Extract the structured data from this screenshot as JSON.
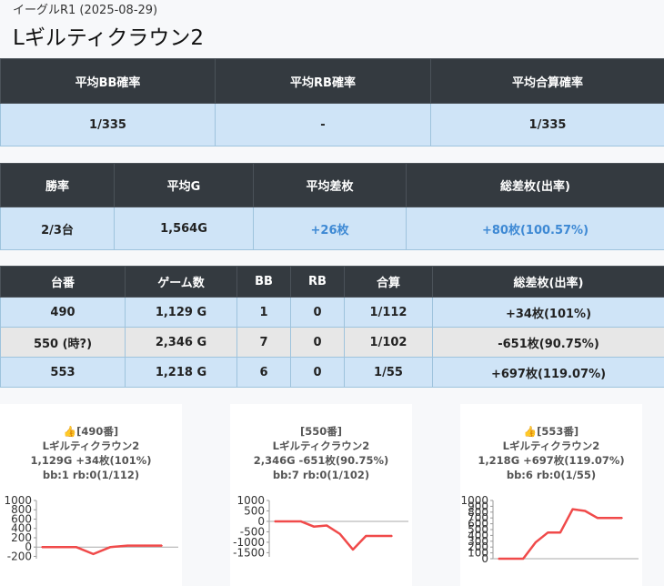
{
  "header": {
    "subtitle": "イーグルR1 (2025-08-29)",
    "title": "Lギルティクラウン2"
  },
  "summary1": {
    "headers": [
      "平均BB確率",
      "平均RB確率",
      "平均合算確率"
    ],
    "values": [
      "1/335",
      "-",
      "1/335"
    ]
  },
  "summary2": {
    "headers": [
      "勝率",
      "平均G",
      "平均差枚",
      "総差枚(出率)"
    ],
    "values": [
      "2/3台",
      "1,564G",
      "+26枚",
      "+80枚(100.57%)"
    ]
  },
  "machines": {
    "headers": [
      "台番",
      "ゲーム数",
      "BB",
      "RB",
      "合算",
      "総差枚(出率)"
    ],
    "rows": [
      [
        "490",
        "1,129 G",
        "1",
        "0",
        "1/112",
        "+34枚(101%)"
      ],
      [
        "550 (時?)",
        "2,346 G",
        "7",
        "0",
        "1/102",
        "-651枚(90.75%)"
      ],
      [
        "553",
        "1,218 G",
        "6",
        "0",
        "1/55",
        "+697枚(119.07%)"
      ]
    ]
  },
  "cards": [
    {
      "icon": "thumbs-up-icon",
      "line1": "[490番]",
      "line2": "Lギルティクラウン2",
      "line3": "1,129G +34枚(101%)",
      "line4": "bb:1 rb:0(1/112)"
    },
    {
      "icon": "",
      "line1": "[550番]",
      "line2": "Lギルティクラウン2",
      "line3": "2,346G -651枚(90.75%)",
      "line4": "bb:7 rb:0(1/102)"
    },
    {
      "icon": "thumbs-up-icon",
      "line1": "[553番]",
      "line2": "Lギルティクラウン2",
      "line3": "1,218G +697枚(119.07%)",
      "line4": "bb:6 rb:0(1/55)"
    }
  ],
  "chart_data": [
    {
      "type": "line",
      "yticks": [
        "1000",
        "800",
        "600",
        "400",
        "200",
        "0",
        "-200"
      ],
      "ylim": [
        -250,
        1000
      ],
      "values": [
        0,
        0,
        0,
        -150,
        0,
        30,
        30,
        30
      ],
      "color": "#f04a4a"
    },
    {
      "type": "line",
      "yticks": [
        "1000",
        "500",
        "0",
        "-500",
        "-1000",
        "-1500"
      ],
      "ylim": [
        -1700,
        1000
      ],
      "values": [
        0,
        0,
        0,
        -250,
        -200,
        -600,
        -1350,
        -700,
        -700,
        -700
      ],
      "color": "#f04a4a"
    },
    {
      "type": "line",
      "yticks": [
        "1000",
        "900",
        "800",
        "700",
        "600",
        "500",
        "400",
        "300",
        "200",
        "100",
        "0"
      ],
      "ylim": [
        0,
        1000
      ],
      "values": [
        0,
        0,
        0,
        280,
        450,
        450,
        850,
        820,
        700,
        700,
        700
      ],
      "color": "#f04a4a"
    }
  ]
}
